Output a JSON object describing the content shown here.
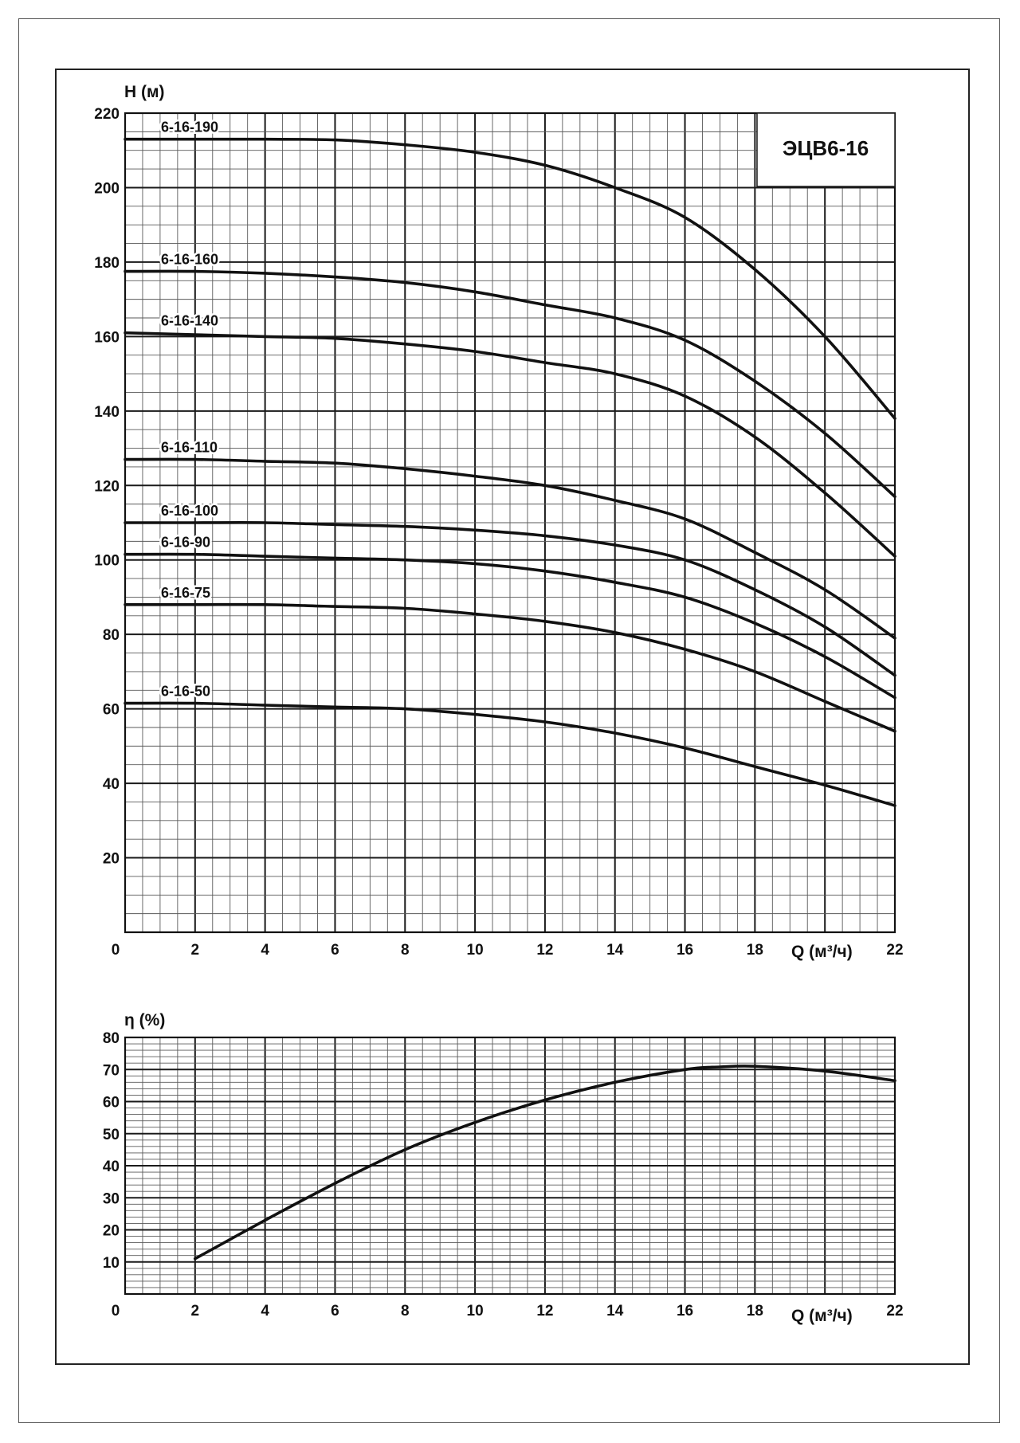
{
  "chart_data": [
    {
      "type": "line",
      "title": "ЭЦВ6-16",
      "ylabel": "H (м)",
      "xlabel": "Q (м³/ч)",
      "xlim": [
        0,
        22
      ],
      "ylim": [
        0,
        220
      ],
      "x_ticks": [
        "0",
        "2",
        "4",
        "6",
        "8",
        "10",
        "12",
        "14",
        "16",
        "18",
        "22"
      ],
      "y_ticks": [
        "20",
        "40",
        "60",
        "80",
        "100",
        "120",
        "140",
        "160",
        "180",
        "200",
        "220"
      ],
      "grid": true,
      "colors": {
        "line": "#111111",
        "grid_major": "#1a1a1a",
        "grid_minor": "#5a5a5a"
      },
      "series": [
        {
          "name": "6-16-190",
          "x": [
            0,
            2,
            4,
            6,
            8,
            10,
            12,
            14,
            16,
            18,
            20,
            22
          ],
          "y": [
            213,
            213,
            213,
            212.8,
            211.5,
            209.5,
            206,
            200,
            192,
            178,
            160,
            138
          ]
        },
        {
          "name": "6-16-160",
          "x": [
            0,
            2,
            4,
            6,
            8,
            10,
            12,
            14,
            16,
            18,
            20,
            22
          ],
          "y": [
            177.5,
            177.5,
            177,
            176,
            174.5,
            172,
            168.5,
            165,
            159,
            148,
            134,
            117
          ]
        },
        {
          "name": "6-16-140",
          "x": [
            0,
            2,
            4,
            6,
            8,
            10,
            12,
            14,
            16,
            18,
            20,
            22
          ],
          "y": [
            161,
            160.5,
            160,
            159.5,
            158,
            156,
            153,
            150,
            144,
            133,
            118,
            101
          ]
        },
        {
          "name": "6-16-110",
          "x": [
            0,
            2,
            4,
            6,
            8,
            10,
            12,
            14,
            16,
            18,
            20,
            22
          ],
          "y": [
            127,
            127,
            126.5,
            126,
            124.5,
            122.5,
            120,
            116,
            111,
            102,
            92,
            79
          ]
        },
        {
          "name": "6-16-100",
          "x": [
            0,
            2,
            4,
            6,
            8,
            10,
            12,
            14,
            16,
            18,
            20,
            22
          ],
          "y": [
            110,
            110,
            110,
            109.5,
            109,
            108,
            106.5,
            104,
            100,
            92,
            82,
            69
          ]
        },
        {
          "name": "6-16-90",
          "x": [
            0,
            2,
            4,
            6,
            8,
            10,
            12,
            14,
            16,
            18,
            20,
            22
          ],
          "y": [
            101.5,
            101.5,
            101,
            100.5,
            100,
            99,
            97,
            94,
            90,
            83,
            74,
            63
          ]
        },
        {
          "name": "6-16-75",
          "x": [
            0,
            2,
            4,
            6,
            8,
            10,
            12,
            14,
            16,
            18,
            20,
            22
          ],
          "y": [
            88,
            88,
            88,
            87.5,
            87,
            85.5,
            83.5,
            80.5,
            76,
            70,
            62,
            54
          ]
        },
        {
          "name": "6-16-50",
          "x": [
            0,
            2,
            4,
            6,
            8,
            10,
            12,
            14,
            16,
            18,
            20,
            22
          ],
          "y": [
            61.5,
            61.5,
            61,
            60.5,
            60,
            58.5,
            56.5,
            53.5,
            49.5,
            44.5,
            39.5,
            34
          ]
        }
      ]
    },
    {
      "type": "line",
      "ylabel": "η (%)",
      "xlabel": "Q (м³/ч)",
      "xlim": [
        0,
        22
      ],
      "ylim": [
        0,
        80
      ],
      "x_ticks": [
        "0",
        "2",
        "4",
        "6",
        "8",
        "10",
        "12",
        "14",
        "16",
        "18",
        "22"
      ],
      "y_ticks": [
        "10",
        "20",
        "30",
        "40",
        "50",
        "60",
        "70",
        "80"
      ],
      "grid": true,
      "series": [
        {
          "x": [
            2,
            4,
            6,
            8,
            10,
            12,
            14,
            16,
            17,
            18,
            20,
            22
          ],
          "y": [
            11,
            23,
            34.5,
            45,
            53.5,
            60.5,
            66,
            70,
            70.8,
            71,
            69.5,
            66.5
          ]
        }
      ]
    }
  ]
}
